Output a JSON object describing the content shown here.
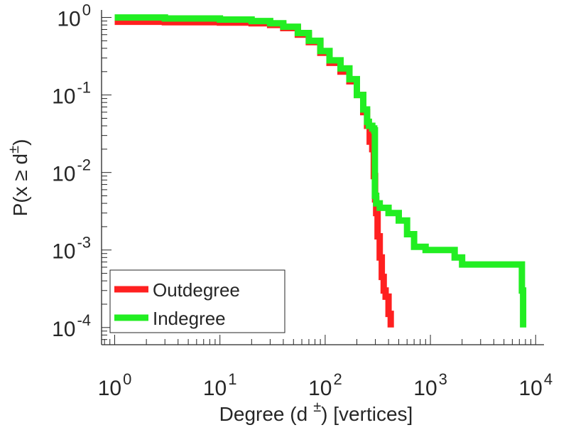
{
  "chart_data": {
    "type": "line",
    "xlabel": "Degree (d ±) [vertices]",
    "xlabel_parts": {
      "pre": "Degree (d",
      "sup": "±",
      "post": ") [vertices]"
    },
    "ylabel": "P(x ≥ d±)",
    "ylabel_parts": {
      "pre": "P(x ≥ d",
      "sup": "±",
      "post": ")"
    },
    "x_scale": "log",
    "y_scale": "log",
    "xlim": [
      0.75,
      12000
    ],
    "ylim": [
      6e-05,
      1.25
    ],
    "xticks": [
      {
        "base": "10",
        "exp": "0",
        "value": 1
      },
      {
        "base": "10",
        "exp": "1",
        "value": 10
      },
      {
        "base": "10",
        "exp": "2",
        "value": 100
      },
      {
        "base": "10",
        "exp": "3",
        "value": 1000
      },
      {
        "base": "10",
        "exp": "4",
        "value": 10000
      }
    ],
    "yticks": [
      {
        "base": "10",
        "exp": "0",
        "value": 1
      },
      {
        "base": "10",
        "exp": "-1",
        "value": 0.1
      },
      {
        "base": "10",
        "exp": "-2",
        "value": 0.01
      },
      {
        "base": "10",
        "exp": "-3",
        "value": 0.001
      },
      {
        "base": "10",
        "exp": "-4",
        "value": 0.0001
      }
    ],
    "grid": false,
    "legend_position": "bottom-left",
    "series": [
      {
        "name": "Outdegree",
        "color": "#ff2020",
        "points": [
          [
            1,
            0.88
          ],
          [
            3,
            0.87
          ],
          [
            10,
            0.86
          ],
          [
            20,
            0.84
          ],
          [
            30,
            0.8
          ],
          [
            40,
            0.73
          ],
          [
            55,
            0.6
          ],
          [
            70,
            0.48
          ],
          [
            90,
            0.35
          ],
          [
            110,
            0.26
          ],
          [
            140,
            0.2
          ],
          [
            170,
            0.15
          ],
          [
            200,
            0.1
          ],
          [
            230,
            0.06
          ],
          [
            250,
            0.04
          ],
          [
            265,
            0.025
          ],
          [
            280,
            0.02
          ],
          [
            290,
            0.009
          ],
          [
            298,
            0.0045
          ],
          [
            305,
            0.003
          ],
          [
            315,
            0.0015
          ],
          [
            330,
            0.0008
          ],
          [
            345,
            0.00045
          ],
          [
            360,
            0.0003
          ],
          [
            375,
            0.00025
          ],
          [
            400,
            0.00015
          ],
          [
            420,
            0.0001
          ]
        ]
      },
      {
        "name": "Indegree",
        "color": "#22ee22",
        "points": [
          [
            1,
            1.0
          ],
          [
            3,
            0.97
          ],
          [
            10,
            0.94
          ],
          [
            20,
            0.9
          ],
          [
            30,
            0.84
          ],
          [
            40,
            0.76
          ],
          [
            55,
            0.63
          ],
          [
            70,
            0.5
          ],
          [
            90,
            0.37
          ],
          [
            110,
            0.28
          ],
          [
            140,
            0.22
          ],
          [
            170,
            0.16
          ],
          [
            200,
            0.1
          ],
          [
            230,
            0.065
          ],
          [
            250,
            0.045
          ],
          [
            260,
            0.04
          ],
          [
            280,
            0.037
          ],
          [
            292,
            0.035
          ],
          [
            297,
            0.005
          ],
          [
            305,
            0.004
          ],
          [
            330,
            0.0035
          ],
          [
            400,
            0.003
          ],
          [
            500,
            0.0024
          ],
          [
            600,
            0.0016
          ],
          [
            700,
            0.0011
          ],
          [
            900,
            0.001
          ],
          [
            1400,
            0.001
          ],
          [
            1700,
            0.0008
          ],
          [
            2000,
            0.00065
          ],
          [
            4000,
            0.00065
          ],
          [
            7000,
            0.00065
          ],
          [
            7400,
            0.0003
          ],
          [
            7600,
            0.0001
          ]
        ]
      }
    ]
  }
}
